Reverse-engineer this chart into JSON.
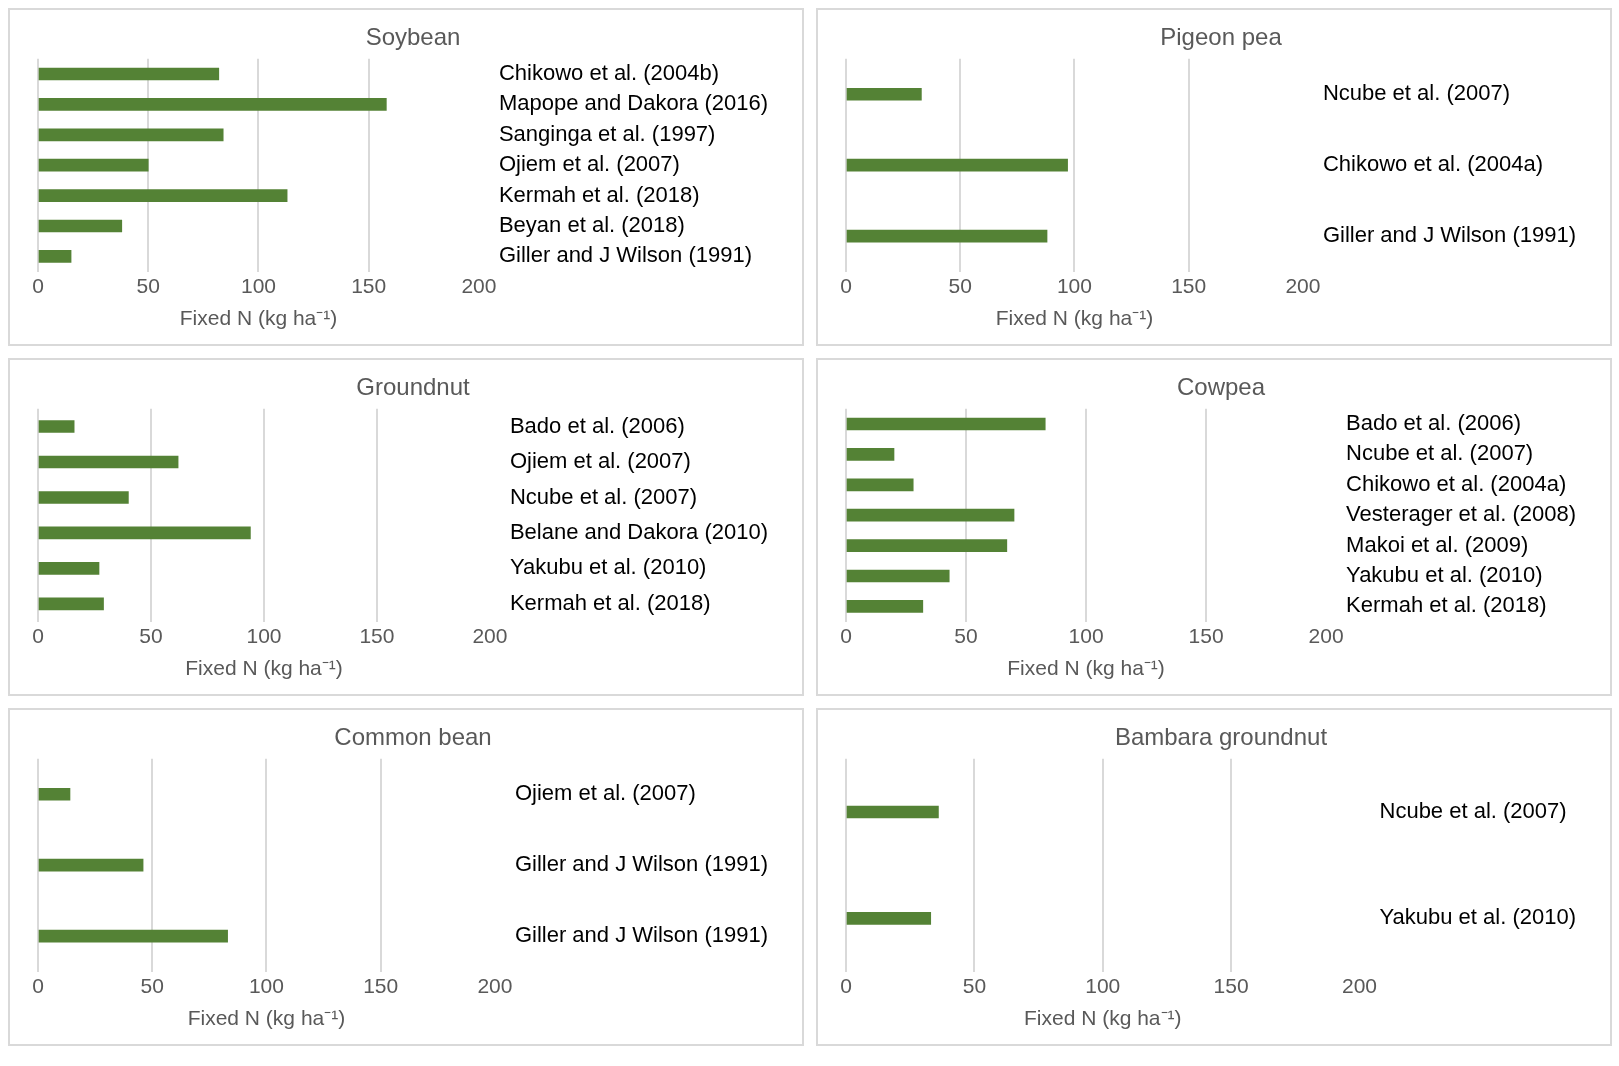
{
  "chart_data": [
    {
      "type": "bar",
      "orientation": "horizontal",
      "title": "Soybean",
      "xlabel": "Fixed N (kg ha⁻¹)",
      "categories": [
        "Chikowo et al. (2004b)",
        "Mapope and Dakora (2016)",
        "Sanginga et al. (1997)",
        "Ojiem et al. (2007)",
        "Kermah et al. (2018)",
        "Beyan et al. (2018)",
        "Giller and J Wilson (1991)"
      ],
      "values": [
        82,
        158,
        84,
        50,
        113,
        38,
        15
      ],
      "color": "#548235",
      "xlim": [
        0,
        200
      ],
      "xticks": [
        0,
        50,
        100,
        150,
        200
      ],
      "grid": "x"
    },
    {
      "type": "bar",
      "orientation": "horizontal",
      "title": "Pigeon pea",
      "xlabel": "Fixed N (kg ha⁻¹)",
      "categories": [
        "Ncube et al. (2007)",
        "Chikowo et al. (2004a)",
        "Giller and J Wilson (1991)"
      ],
      "values": [
        33,
        97,
        88
      ],
      "color": "#548235",
      "xlim": [
        0,
        200
      ],
      "xticks": [
        0,
        50,
        100,
        150,
        200
      ],
      "grid": "x"
    },
    {
      "type": "bar",
      "orientation": "horizontal",
      "title": "Groundnut",
      "xlabel": "Fixed N (kg ha⁻¹)",
      "categories": [
        "Bado et al. (2006)",
        "Ojiem et al. (2007)",
        "Ncube et al. (2007)",
        "Belane and Dakora (2010)",
        "Yakubu et al. (2010)",
        "Kermah et al. (2018)"
      ],
      "values": [
        16,
        62,
        40,
        94,
        27,
        29
      ],
      "color": "#548235",
      "xlim": [
        0,
        200
      ],
      "xticks": [
        0,
        50,
        100,
        150,
        200
      ],
      "grid": "x"
    },
    {
      "type": "bar",
      "orientation": "horizontal",
      "title": "Cowpea",
      "xlabel": "Fixed N (kg ha⁻¹)",
      "categories": [
        "Bado et al. (2006)",
        "Ncube et al. (2007)",
        "Chikowo et al. (2004a)",
        "Vesterager et al. (2008)",
        "Makoi et al. (2009)",
        "Yakubu et al. (2010)",
        "Kermah et al. (2018)"
      ],
      "values": [
        83,
        20,
        28,
        70,
        67,
        43,
        32
      ],
      "color": "#548235",
      "xlim": [
        0,
        200
      ],
      "xticks": [
        0,
        50,
        100,
        150,
        200
      ],
      "grid": "x"
    },
    {
      "type": "bar",
      "orientation": "horizontal",
      "title": "Common bean",
      "xlabel": "Fixed N (kg ha⁻¹)",
      "categories": [
        "Ojiem et al. (2007)",
        "Giller and J Wilson (1991)",
        "Giller and J Wilson (1991)"
      ],
      "values": [
        14,
        46,
        83
      ],
      "color": "#548235",
      "xlim": [
        0,
        200
      ],
      "xticks": [
        0,
        50,
        100,
        150,
        200
      ],
      "grid": "x"
    },
    {
      "type": "bar",
      "orientation": "horizontal",
      "title": "Bambara groundnut",
      "xlabel": "Fixed N (kg ha⁻¹)",
      "categories": [
        "Ncube et al. (2007)",
        "Yakubu et al. (2010)"
      ],
      "values": [
        36,
        33
      ],
      "color": "#548235",
      "xlim": [
        0,
        200
      ],
      "xticks": [
        0,
        50,
        100,
        150,
        200
      ],
      "grid": "x"
    }
  ]
}
